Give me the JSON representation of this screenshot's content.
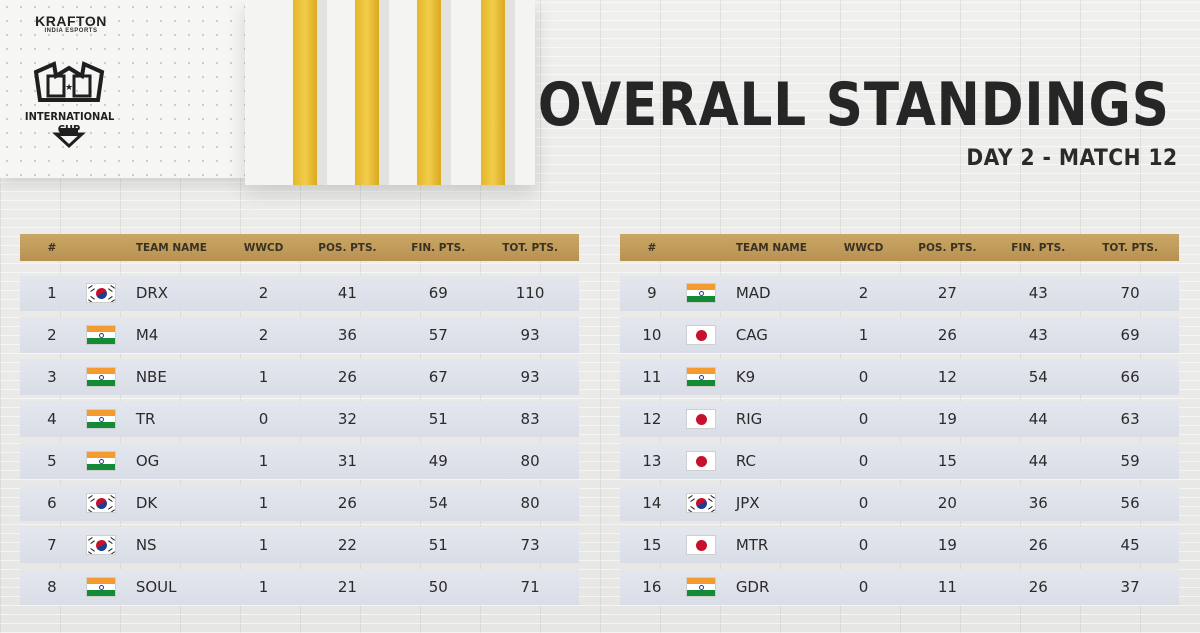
{
  "branding": {
    "publisher": "KRAFTON",
    "publisher_sub": "INDIA ESPORTS",
    "event_name": "INTERNATIONAL CUP"
  },
  "header": {
    "title": "OVERALL STANDINGS",
    "subtitle": "DAY 2 - MATCH 12"
  },
  "columns": {
    "rank": "#",
    "team": "TEAM NAME",
    "wwcd": "WWCD",
    "pos": "POS. PTS.",
    "fin": "FIN. PTS.",
    "tot": "TOT. PTS."
  },
  "standings_left": [
    {
      "rank": "1",
      "flag": "kr-flag-icon",
      "team": "DRX",
      "wwcd": "2",
      "pos": "41",
      "fin": "69",
      "tot": "110"
    },
    {
      "rank": "2",
      "flag": "in-flag-icon",
      "team": "M4",
      "wwcd": "2",
      "pos": "36",
      "fin": "57",
      "tot": "93"
    },
    {
      "rank": "3",
      "flag": "in-flag-icon",
      "team": "NBE",
      "wwcd": "1",
      "pos": "26",
      "fin": "67",
      "tot": "93"
    },
    {
      "rank": "4",
      "flag": "in-flag-icon",
      "team": "TR",
      "wwcd": "0",
      "pos": "32",
      "fin": "51",
      "tot": "83"
    },
    {
      "rank": "5",
      "flag": "in-flag-icon",
      "team": "OG",
      "wwcd": "1",
      "pos": "31",
      "fin": "49",
      "tot": "80"
    },
    {
      "rank": "6",
      "flag": "kr-flag-icon",
      "team": "DK",
      "wwcd": "1",
      "pos": "26",
      "fin": "54",
      "tot": "80"
    },
    {
      "rank": "7",
      "flag": "kr-flag-icon",
      "team": "NS",
      "wwcd": "1",
      "pos": "22",
      "fin": "51",
      "tot": "73"
    },
    {
      "rank": "8",
      "flag": "in-flag-icon",
      "team": "SOUL",
      "wwcd": "1",
      "pos": "21",
      "fin": "50",
      "tot": "71"
    }
  ],
  "standings_right": [
    {
      "rank": "9",
      "flag": "in-flag-icon",
      "team": "MAD",
      "wwcd": "2",
      "pos": "27",
      "fin": "43",
      "tot": "70"
    },
    {
      "rank": "10",
      "flag": "jp-flag-icon",
      "team": "CAG",
      "wwcd": "1",
      "pos": "26",
      "fin": "43",
      "tot": "69"
    },
    {
      "rank": "11",
      "flag": "in-flag-icon",
      "team": "K9",
      "wwcd": "0",
      "pos": "12",
      "fin": "54",
      "tot": "66"
    },
    {
      "rank": "12",
      "flag": "jp-flag-icon",
      "team": "RIG",
      "wwcd": "0",
      "pos": "19",
      "fin": "44",
      "tot": "63"
    },
    {
      "rank": "13",
      "flag": "jp-flag-icon",
      "team": "RC",
      "wwcd": "0",
      "pos": "15",
      "fin": "44",
      "tot": "59"
    },
    {
      "rank": "14",
      "flag": "kr-flag-icon",
      "team": "JPX",
      "wwcd": "0",
      "pos": "20",
      "fin": "36",
      "tot": "56"
    },
    {
      "rank": "15",
      "flag": "jp-flag-icon",
      "team": "MTR",
      "wwcd": "0",
      "pos": "19",
      "fin": "26",
      "tot": "45"
    },
    {
      "rank": "16",
      "flag": "in-flag-icon",
      "team": "GDR",
      "wwcd": "0",
      "pos": "11",
      "fin": "26",
      "tot": "37"
    }
  ],
  "colors": {
    "accent_gold": "#e3b72b",
    "header_bar": "#caa766",
    "row_bg": "#e0e3ea",
    "title_text": "#262626"
  }
}
